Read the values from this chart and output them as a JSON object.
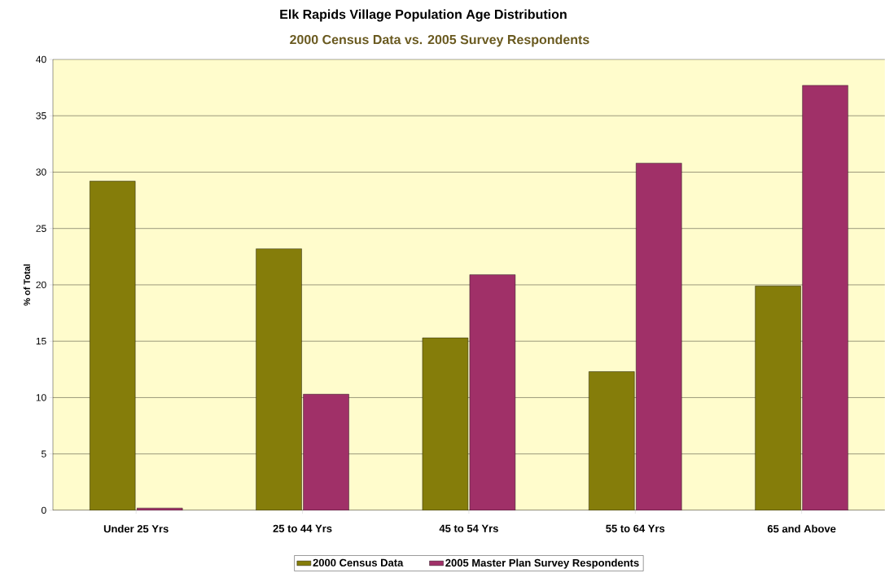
{
  "chart_data": {
    "type": "bar",
    "title": "Elk Rapids Village Population Age Distribution",
    "subtitle": "2000 Census Data vs. 2005 Survey Respondents",
    "ylabel": "% of Total",
    "categories": [
      "Under 25 Yrs",
      "25 to 44 Yrs",
      "45 to 54 Yrs",
      "55 to 64 Yrs",
      "65 and Above"
    ],
    "series": [
      {
        "name": "2000 Census Data",
        "color": "#857d0a",
        "values": [
          29.2,
          23.2,
          15.3,
          12.3,
          19.9
        ]
      },
      {
        "name": "2005 Master Plan Survey Respondents",
        "color": "#a03068",
        "values": [
          0.2,
          10.3,
          20.9,
          30.8,
          37.7
        ]
      }
    ],
    "ylim": [
      0,
      40
    ],
    "yticks": [
      0,
      5,
      10,
      15,
      20,
      25,
      30,
      35,
      40
    ],
    "grid": "y",
    "legend": "bottom"
  }
}
